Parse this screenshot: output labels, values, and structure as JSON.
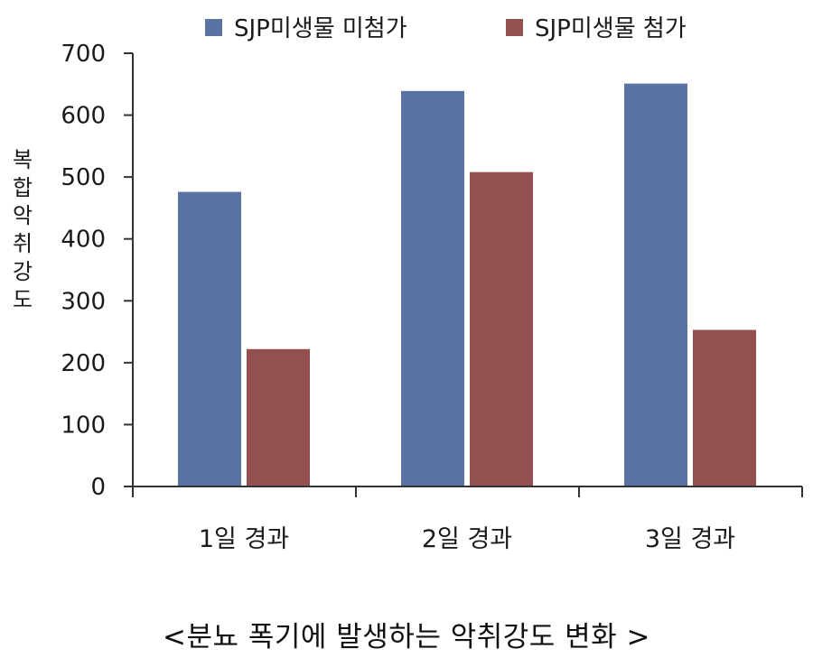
{
  "chart_data": {
    "type": "bar",
    "categories": [
      "1일 경과",
      "2일 경과",
      "3일 경과"
    ],
    "series": [
      {
        "name": "SJP미생물 미첨가",
        "values": [
          476,
          639,
          651
        ],
        "color": "#5b73a3"
      },
      {
        "name": "SJP미생물 첨가",
        "values": [
          222,
          508,
          253
        ],
        "color": "#944f50"
      }
    ],
    "ylabel": "복합악취강도",
    "xlabel": "",
    "ylim": [
      0,
      700
    ],
    "yticks": [
      0,
      100,
      200,
      300,
      400,
      500,
      600,
      700
    ],
    "grid": false,
    "legend_position": "top"
  },
  "caption": "<분뇨 폭기에 발생하는 악취강도 변화 >"
}
